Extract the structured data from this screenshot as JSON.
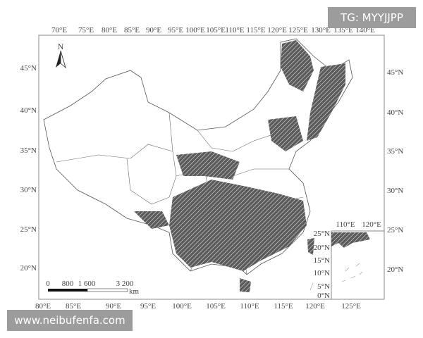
{
  "map": {
    "north_label": "N",
    "top_lon_labels": [
      "70°E",
      "75°E",
      "80°E",
      "85°E",
      "90°E",
      "95°E",
      "100°E",
      "105°E",
      "110°E",
      "115°E",
      "120°E",
      "125°E",
      "130°E",
      "135°E",
      "140°E"
    ],
    "bottom_lon_labels": [
      "80°E",
      "85°E",
      "90°E",
      "95°E",
      "100°E",
      "105°E",
      "110°E",
      "115°E",
      "120°E",
      "125°E"
    ],
    "left_lat_labels": [
      "45°N",
      "40°N",
      "35°N",
      "30°N",
      "25°N",
      "20°N"
    ],
    "right_lat_labels": [
      "45°N",
      "40°N",
      "35°N",
      "30°N",
      "25°N",
      "20°N"
    ],
    "scale_bar": {
      "ticks": [
        "0",
        "800",
        "1 600",
        "3 200"
      ],
      "unit": "km"
    },
    "inset": {
      "top_labels": [
        "110°E",
        "120°E"
      ],
      "left_labels": [
        "25°N",
        "20°N",
        "15°N",
        "10°N",
        "5°N",
        "0°N"
      ],
      "right_labels": [
        "25°N",
        "20°N"
      ]
    },
    "colors": {
      "land_dark": "#3a3a3a",
      "boundary": "#555555",
      "frame": "#888888"
    }
  },
  "watermarks": {
    "top_right": "TG: MYYJJPP",
    "bottom_left": "www.neibufenfa.com"
  }
}
